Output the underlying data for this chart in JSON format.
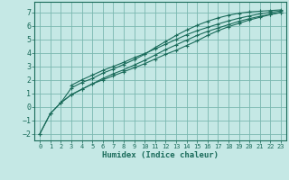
{
  "title": "",
  "xlabel": "Humidex (Indice chaleur)",
  "ylabel": "",
  "xlim": [
    -0.5,
    23.5
  ],
  "ylim": [
    -2.5,
    7.8
  ],
  "yticks": [
    -2,
    -1,
    0,
    1,
    2,
    3,
    4,
    5,
    6,
    7
  ],
  "xticks": [
    0,
    1,
    2,
    3,
    4,
    5,
    6,
    7,
    8,
    9,
    10,
    11,
    12,
    13,
    14,
    15,
    16,
    17,
    18,
    19,
    20,
    21,
    22,
    23
  ],
  "bg_color": "#c5e8e5",
  "grid_color": "#7ab8b0",
  "line_color": "#1a6b5a",
  "curves": [
    {
      "x": [
        0,
        1,
        2,
        3,
        4,
        5,
        6,
        7,
        8,
        9,
        10,
        11,
        12,
        13,
        14,
        15,
        16,
        17,
        18,
        19,
        20,
        21,
        22,
        23
      ],
      "y": [
        -2.0,
        -0.5,
        0.3,
        0.9,
        1.3,
        1.7,
        2.0,
        2.3,
        2.6,
        2.9,
        3.2,
        3.55,
        3.9,
        4.2,
        4.55,
        4.9,
        5.3,
        5.65,
        5.95,
        6.2,
        6.45,
        6.65,
        6.85,
        7.0
      ]
    },
    {
      "x": [
        0,
        1,
        2,
        3,
        4,
        5,
        6,
        7,
        8,
        9,
        10,
        11,
        12,
        13,
        14,
        15,
        16,
        17,
        18,
        19,
        20,
        21,
        22,
        23
      ],
      "y": [
        -2.0,
        -0.5,
        0.3,
        1.4,
        1.8,
        2.1,
        2.5,
        2.8,
        3.15,
        3.5,
        3.9,
        4.4,
        4.85,
        5.3,
        5.7,
        6.05,
        6.35,
        6.6,
        6.8,
        6.95,
        7.05,
        7.1,
        7.15,
        7.2
      ]
    },
    {
      "x": [
        2,
        3,
        4,
        5,
        6,
        7,
        8,
        9,
        10,
        11,
        12,
        13,
        14,
        15,
        16,
        17,
        18,
        19,
        20,
        21,
        22,
        23
      ],
      "y": [
        0.3,
        0.9,
        1.3,
        1.7,
        2.1,
        2.45,
        2.75,
        3.1,
        3.45,
        3.85,
        4.25,
        4.6,
        4.95,
        5.3,
        5.6,
        5.85,
        6.1,
        6.35,
        6.55,
        6.72,
        6.88,
        7.02
      ]
    },
    {
      "x": [
        3,
        4,
        5,
        6,
        7,
        8,
        9,
        10,
        11,
        12,
        13,
        14,
        15,
        16,
        17,
        18,
        19,
        20,
        21,
        22,
        23
      ],
      "y": [
        1.6,
        2.0,
        2.35,
        2.7,
        3.0,
        3.3,
        3.65,
        3.95,
        4.3,
        4.65,
        5.0,
        5.35,
        5.65,
        5.9,
        6.15,
        6.38,
        6.58,
        6.75,
        6.9,
        7.02,
        7.12
      ]
    }
  ]
}
